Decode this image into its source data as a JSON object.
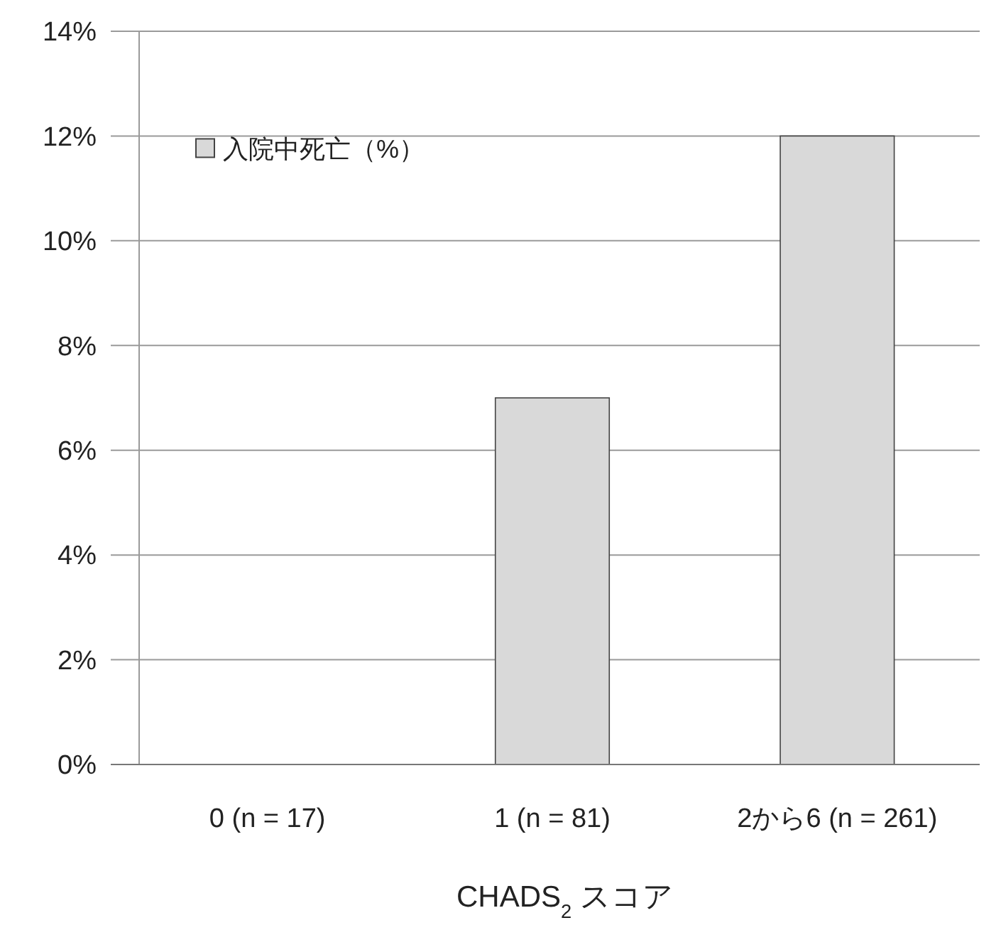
{
  "chart_data": {
    "type": "bar",
    "xlabel": "CHADS$_{2}$ スコア",
    "categories": [
      "0 (n = 17)",
      "1 (n = 81)",
      "2から6 (n = 261)"
    ],
    "series": [
      {
        "name": "入院中死亡（%）",
        "color": "#d9d9d9",
        "values": [
          0,
          7,
          12
        ]
      }
    ],
    "ylim": [
      0,
      14
    ],
    "yticks": [
      {
        "value": 0,
        "label": "0%"
      },
      {
        "value": 2,
        "label": "2%"
      },
      {
        "value": 4,
        "label": "4%"
      },
      {
        "value": 6,
        "label": "6%"
      },
      {
        "value": 8,
        "label": "8%"
      },
      {
        "value": 10,
        "label": "10%"
      },
      {
        "value": 12,
        "label": "12%"
      },
      {
        "value": 14,
        "label": "14%"
      }
    ],
    "grid": "y",
    "legend": "top left"
  }
}
